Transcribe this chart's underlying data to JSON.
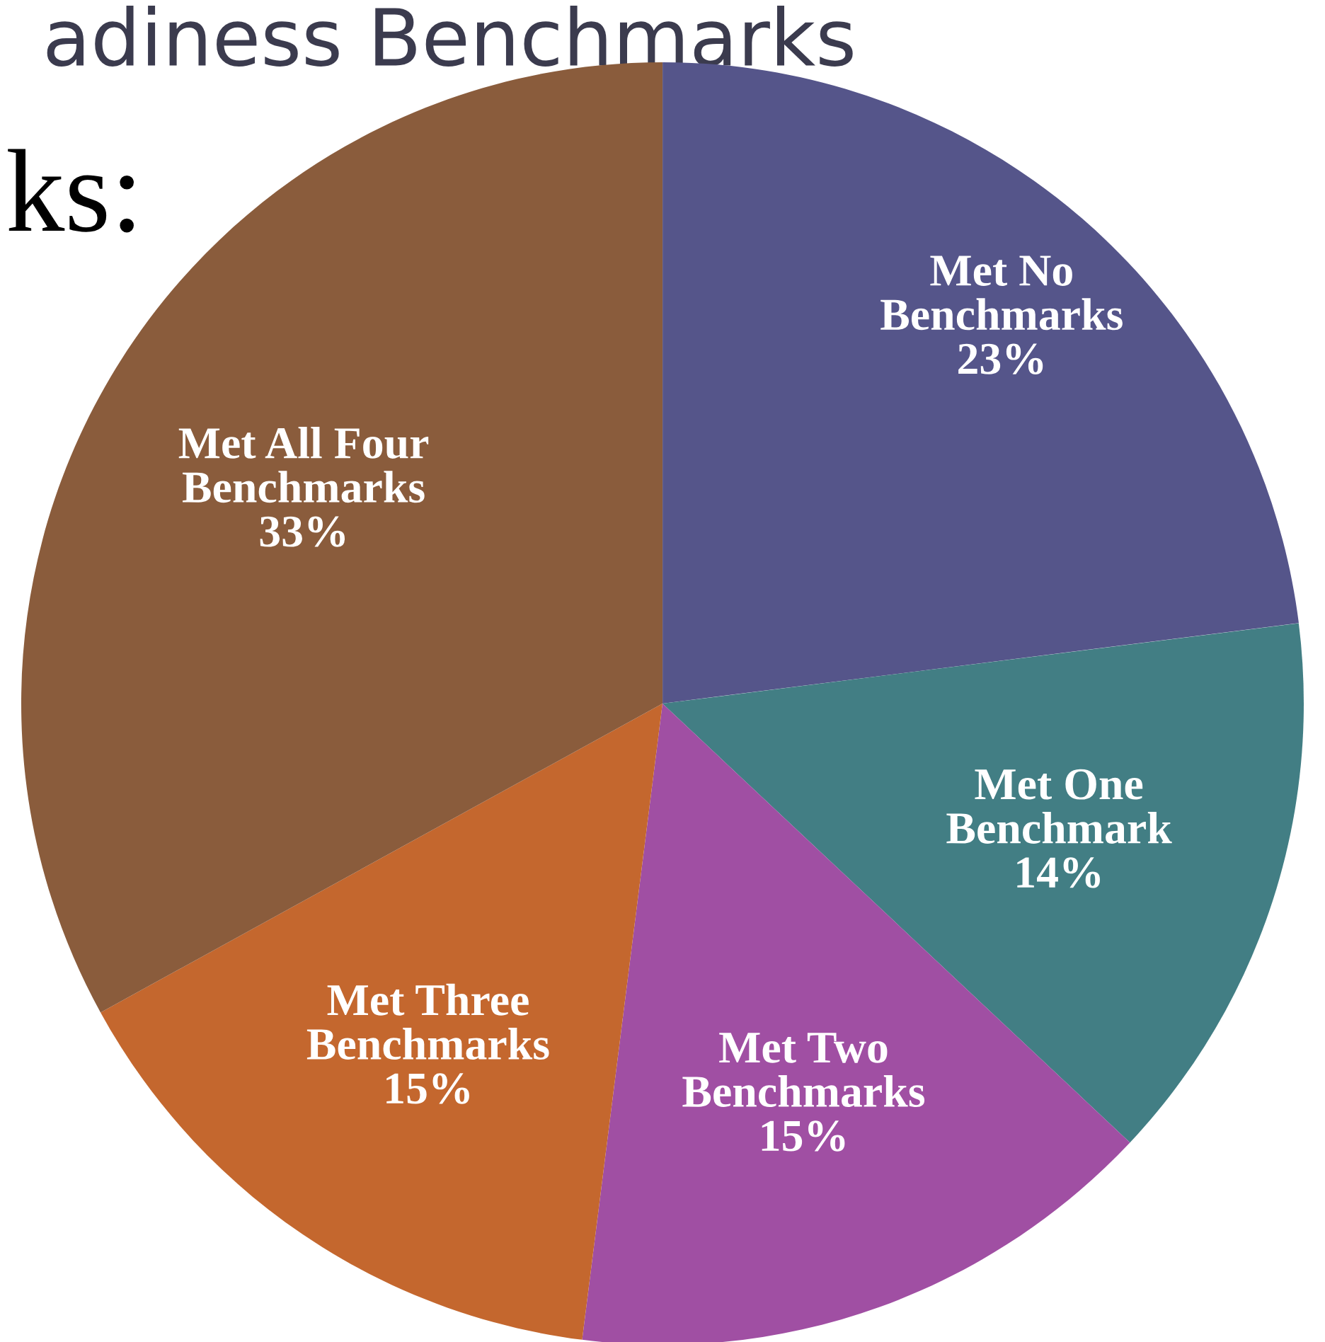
{
  "chart_data": {
    "type": "pie",
    "categories": [
      "Met No Benchmarks",
      "Met One Benchmark",
      "Met Two Benchmarks",
      "Met Three Benchmarks",
      "Met All Four Benchmarks"
    ],
    "values": [
      23,
      14,
      15,
      15,
      33
    ],
    "value_labels": [
      "23%",
      "14%",
      "15%",
      "15%",
      "33%"
    ],
    "colors": [
      "#55558a",
      "#427e84",
      "#a04fa3",
      "#c4672e",
      "#8a5c3c"
    ],
    "annotations": [
      "adiness Benchmarks",
      "ks:"
    ]
  }
}
